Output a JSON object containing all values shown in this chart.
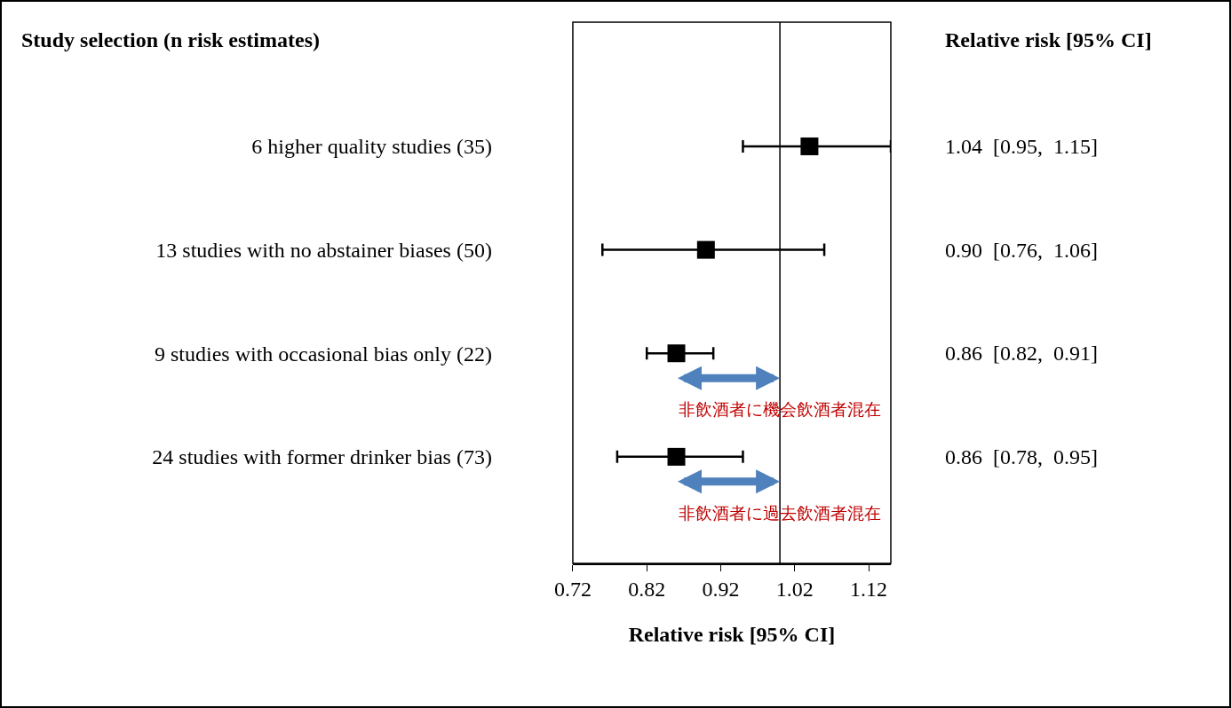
{
  "chart_data": {
    "type": "scatter",
    "orientation": "horizontal",
    "xlabel": "Relative risk [95% CI]",
    "categories": [
      "6 higher quality studies (35)",
      "13 studies with no abstainer biases (50)",
      "9 studies with occasional bias only (22)",
      "24 studies with former drinker bias (73)"
    ],
    "values": [
      1.04,
      0.9,
      0.86,
      0.86
    ],
    "errors": [
      [
        0.95,
        1.15
      ],
      [
        0.76,
        1.06
      ],
      [
        0.82,
        0.91
      ],
      [
        0.78,
        0.95
      ]
    ],
    "value_labels": [
      "1.04  [0.95,  1.15]",
      "0.90  [0.76,  1.06]",
      "0.86  [0.82,  0.91]",
      "0.86  [0.78,  0.95]"
    ],
    "color": "#000000",
    "marker": "square",
    "xlim": [
      0.72,
      1.15
    ],
    "xticks": [
      0.72,
      0.82,
      0.92,
      1.02,
      1.12
    ],
    "ref_lines": [
      {
        "axis": "x",
        "value": 1.0,
        "color": "#000000"
      }
    ],
    "annotations": [
      "Study selection (n risk estimates)",
      "Relative risk [95% CI]",
      "非飲酒者に機会飲酒者混在",
      "非飲酒者に過去飲酒者混在"
    ],
    "grid": false,
    "legend": false
  }
}
